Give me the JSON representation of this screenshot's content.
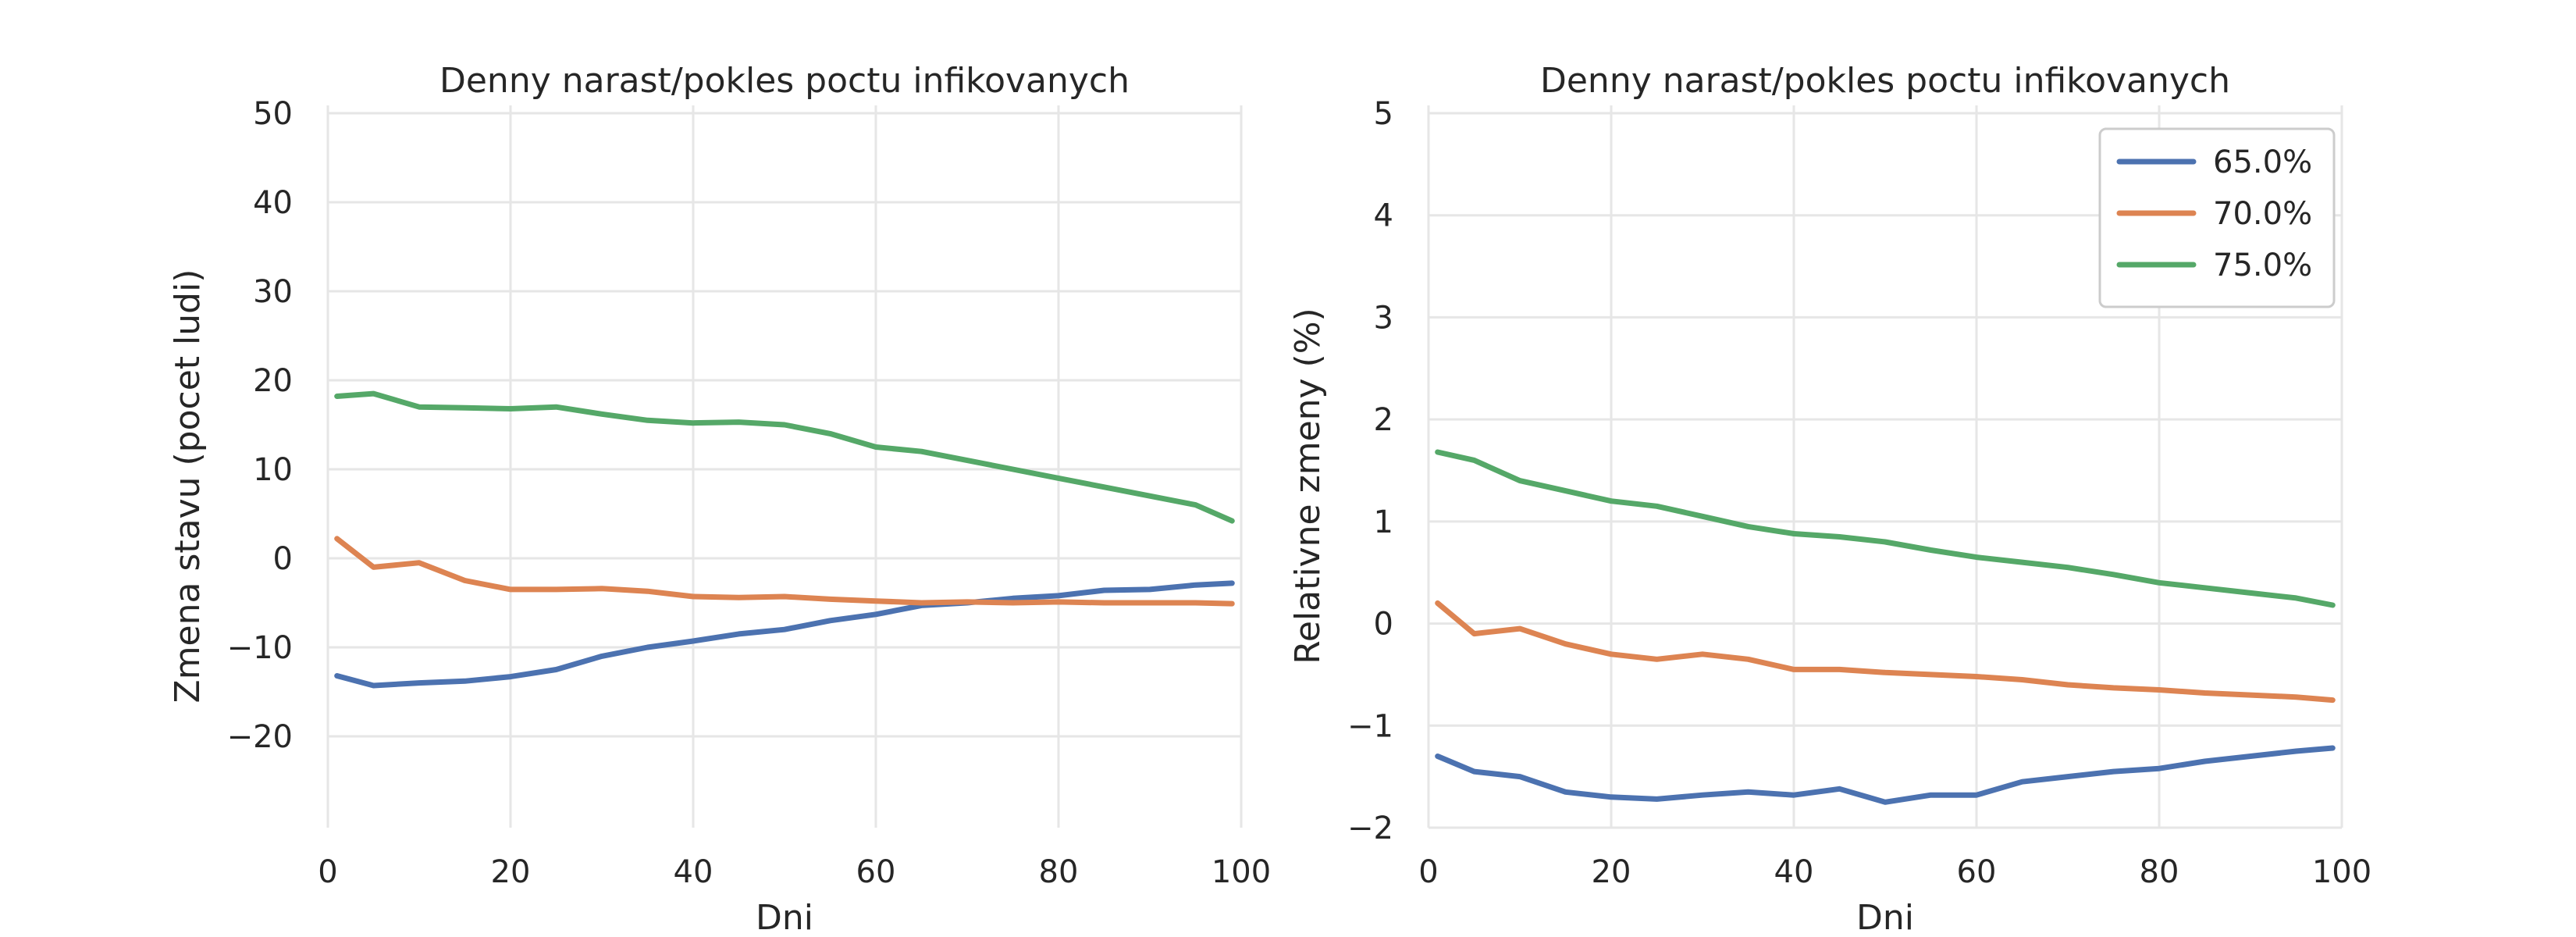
{
  "chart_data": [
    {
      "type": "line",
      "title": "Denny narast/pokles poctu infikovanych",
      "xlabel": "Dni",
      "ylabel": "Zmena stavu (pocet ludi)",
      "xlim": [
        0,
        100
      ],
      "ylim": [
        -25,
        50
      ],
      "xticks": [
        0,
        20,
        40,
        60,
        80,
        100
      ],
      "yticks": [
        -20,
        -10,
        0,
        10,
        20,
        30,
        40,
        50
      ],
      "ytick_labels": [
        "−20",
        "−10",
        "0",
        "10",
        "20",
        "30",
        "40",
        "50"
      ],
      "grid": true,
      "legend": null,
      "x": [
        1,
        5,
        10,
        15,
        20,
        25,
        30,
        35,
        40,
        45,
        50,
        55,
        60,
        65,
        70,
        75,
        80,
        85,
        90,
        95,
        99
      ],
      "series": [
        {
          "color": "#4c72b0",
          "values": [
            -13.2,
            -14.3,
            -14.0,
            -13.8,
            -13.3,
            -12.5,
            -11.0,
            -10.0,
            -9.3,
            -8.5,
            -8.0,
            -7.0,
            -6.3,
            -5.3,
            -5.0,
            -4.5,
            -4.2,
            -3.6,
            -3.5,
            -3.0,
            -2.8
          ]
        },
        {
          "color": "#dd8452",
          "values": [
            2.2,
            -1.0,
            -0.5,
            -2.5,
            -3.5,
            -3.5,
            -3.4,
            -3.7,
            -4.3,
            -4.4,
            -4.3,
            -4.6,
            -4.8,
            -5.0,
            -4.9,
            -5.0,
            -4.9,
            -5.0,
            -5.0,
            -5.0,
            -5.1
          ]
        },
        {
          "color": "#55a868",
          "values": [
            18.2,
            18.5,
            17.0,
            16.9,
            16.8,
            17.0,
            16.2,
            15.5,
            15.2,
            15.3,
            15.0,
            14.0,
            12.5,
            12.0,
            11.0,
            10.0,
            9.0,
            8.0,
            7.0,
            6.0,
            4.2
          ]
        }
      ]
    },
    {
      "type": "line",
      "title": "Denny narast/pokles poctu infikovanych",
      "xlabel": "Dni",
      "ylabel": "Relativne zmeny (%)",
      "xlim": [
        0,
        100
      ],
      "ylim": [
        -2,
        5
      ],
      "xticks": [
        0,
        20,
        40,
        60,
        80,
        100
      ],
      "yticks": [
        -2,
        -1,
        0,
        1,
        2,
        3,
        4,
        5
      ],
      "ytick_labels": [
        "−2",
        "−1",
        "0",
        "1",
        "2",
        "3",
        "4",
        "5"
      ],
      "grid": true,
      "legend": "top-right",
      "x": [
        1,
        5,
        10,
        15,
        20,
        25,
        30,
        35,
        40,
        45,
        50,
        55,
        60,
        65,
        70,
        75,
        80,
        85,
        90,
        95,
        99
      ],
      "series": [
        {
          "name": "65.0%",
          "color": "#4c72b0",
          "values": [
            -1.3,
            -1.45,
            -1.5,
            -1.65,
            -1.7,
            -1.72,
            -1.68,
            -1.65,
            -1.68,
            -1.62,
            -1.75,
            -1.68,
            -1.68,
            -1.55,
            -1.5,
            -1.45,
            -1.42,
            -1.35,
            -1.3,
            -1.25,
            -1.22
          ]
        },
        {
          "name": "70.0%",
          "color": "#dd8452",
          "values": [
            0.2,
            -0.1,
            -0.05,
            -0.2,
            -0.3,
            -0.35,
            -0.3,
            -0.35,
            -0.45,
            -0.45,
            -0.48,
            -0.5,
            -0.52,
            -0.55,
            -0.6,
            -0.63,
            -0.65,
            -0.68,
            -0.7,
            -0.72,
            -0.75
          ]
        },
        {
          "name": "75.0%",
          "color": "#55a868",
          "values": [
            1.68,
            1.6,
            1.4,
            1.3,
            1.2,
            1.15,
            1.05,
            0.95,
            0.88,
            0.85,
            0.8,
            0.72,
            0.65,
            0.6,
            0.55,
            0.48,
            0.4,
            0.35,
            0.3,
            0.25,
            0.18
          ]
        }
      ]
    }
  ]
}
